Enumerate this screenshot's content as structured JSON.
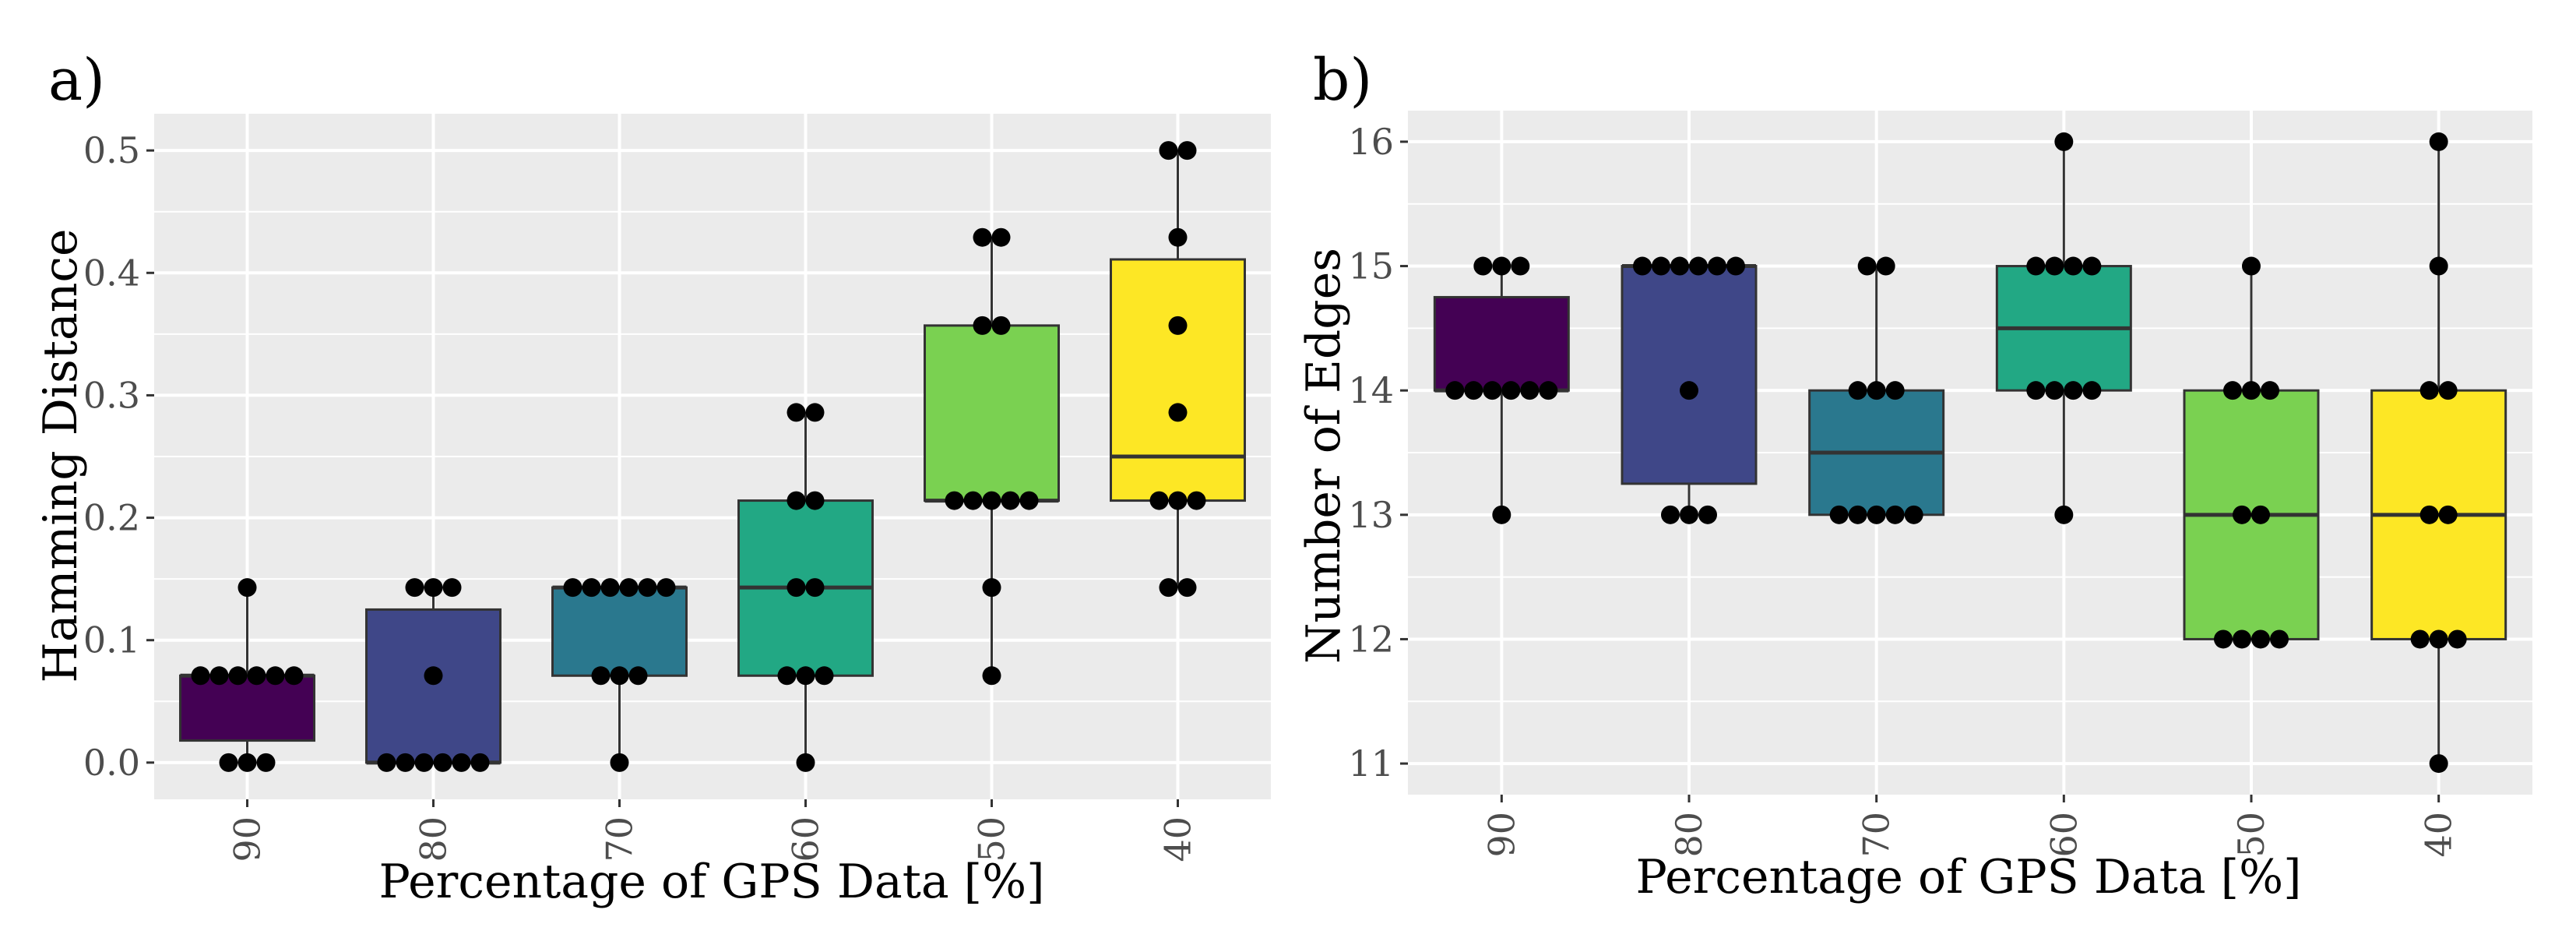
{
  "colors": {
    "panel_background": "#EBEBEB",
    "grid": "#FFFFFF",
    "box_fills": [
      "#440154",
      "#3F4788",
      "#2A788E",
      "#22A884",
      "#7AD151",
      "#FDE725"
    ],
    "outline": "#333333",
    "point": "#000000"
  },
  "chart_data": [
    {
      "type": "box",
      "panel_label": "a)",
      "xlabel": "Percentage of GPS Data [%]",
      "ylabel": "Hamming Distance",
      "categories": [
        "90",
        "80",
        "70",
        "60",
        "50",
        "40"
      ],
      "ylim": [
        -0.03,
        0.53
      ],
      "yticks": [
        0.0,
        0.1,
        0.2,
        0.3,
        0.4,
        0.5
      ],
      "ytick_labels": [
        "0.0",
        "0.1",
        "0.2",
        "0.3",
        "0.4",
        "0.5"
      ],
      "grid": true,
      "legend": "none",
      "boxes": [
        {
          "category": "90",
          "min": 0.0,
          "q1": 0.018,
          "median": 0.071,
          "q3": 0.071,
          "max": 0.143
        },
        {
          "category": "80",
          "min": 0.0,
          "q1": 0.0,
          "median": 0.0,
          "q3": 0.125,
          "max": 0.143
        },
        {
          "category": "70",
          "min": 0.0,
          "q1": 0.071,
          "median": 0.143,
          "q3": 0.143,
          "max": 0.143
        },
        {
          "category": "60",
          "min": 0.0,
          "q1": 0.071,
          "median": 0.143,
          "q3": 0.214,
          "max": 0.286
        },
        {
          "category": "50",
          "min": 0.071,
          "q1": 0.214,
          "median": 0.214,
          "q3": 0.357,
          "max": 0.429
        },
        {
          "category": "40",
          "min": 0.143,
          "q1": 0.214,
          "median": 0.25,
          "q3": 0.411,
          "max": 0.5
        }
      ],
      "points": [
        {
          "category": "90",
          "values": [
            0.143,
            0.071,
            0.071,
            0.071,
            0.071,
            0.071,
            0.071,
            0.0,
            0.0,
            0.0
          ]
        },
        {
          "category": "80",
          "values": [
            0.143,
            0.143,
            0.143,
            0.071,
            0.0,
            0.0,
            0.0,
            0.0,
            0.0,
            0.0
          ]
        },
        {
          "category": "70",
          "values": [
            0.143,
            0.143,
            0.143,
            0.143,
            0.143,
            0.143,
            0.071,
            0.071,
            0.071,
            0.0
          ]
        },
        {
          "category": "60",
          "values": [
            0.286,
            0.286,
            0.214,
            0.214,
            0.143,
            0.143,
            0.071,
            0.071,
            0.071,
            0.0
          ]
        },
        {
          "category": "50",
          "values": [
            0.429,
            0.429,
            0.357,
            0.357,
            0.214,
            0.214,
            0.214,
            0.214,
            0.214,
            0.143,
            0.071
          ]
        },
        {
          "category": "40",
          "values": [
            0.5,
            0.5,
            0.429,
            0.357,
            0.286,
            0.214,
            0.214,
            0.214,
            0.143,
            0.143
          ]
        }
      ]
    },
    {
      "type": "box",
      "panel_label": "b)",
      "xlabel": "Percentage of GPS Data [%]",
      "ylabel": "Number of Edges",
      "categories": [
        "90",
        "80",
        "70",
        "60",
        "50",
        "40"
      ],
      "ylim": [
        10.75,
        16.25
      ],
      "yticks": [
        11,
        12,
        13,
        14,
        15,
        16
      ],
      "ytick_labels": [
        "11",
        "12",
        "13",
        "14",
        "15",
        "16"
      ],
      "grid": true,
      "legend": "none",
      "boxes": [
        {
          "category": "90",
          "min": 13,
          "q1": 14,
          "median": 14,
          "q3": 14.75,
          "max": 15
        },
        {
          "category": "80",
          "min": 13,
          "q1": 13.25,
          "median": 15,
          "q3": 15,
          "max": 15
        },
        {
          "category": "70",
          "min": 13,
          "q1": 13,
          "median": 13.5,
          "q3": 14,
          "max": 15
        },
        {
          "category": "60",
          "min": 13,
          "q1": 14,
          "median": 14.5,
          "q3": 15,
          "max": 16
        },
        {
          "category": "50",
          "min": 12,
          "q1": 12,
          "median": 13,
          "q3": 14,
          "max": 15
        },
        {
          "category": "40",
          "min": 11,
          "q1": 12,
          "median": 13,
          "q3": 14,
          "max": 16
        }
      ],
      "points": [
        {
          "category": "90",
          "values": [
            15,
            15,
            15,
            14,
            14,
            14,
            14,
            14,
            14,
            13
          ]
        },
        {
          "category": "80",
          "values": [
            15,
            15,
            15,
            15,
            15,
            15,
            14,
            13,
            13,
            13
          ]
        },
        {
          "category": "70",
          "values": [
            15,
            15,
            14,
            14,
            14,
            13,
            13,
            13,
            13,
            13
          ]
        },
        {
          "category": "60",
          "values": [
            16,
            15,
            15,
            15,
            15,
            14,
            14,
            14,
            14,
            13
          ]
        },
        {
          "category": "50",
          "values": [
            15,
            14,
            14,
            14,
            13,
            13,
            12,
            12,
            12,
            12
          ]
        },
        {
          "category": "40",
          "values": [
            16,
            15,
            14,
            14,
            13,
            13,
            12,
            12,
            12,
            11
          ]
        }
      ]
    }
  ]
}
